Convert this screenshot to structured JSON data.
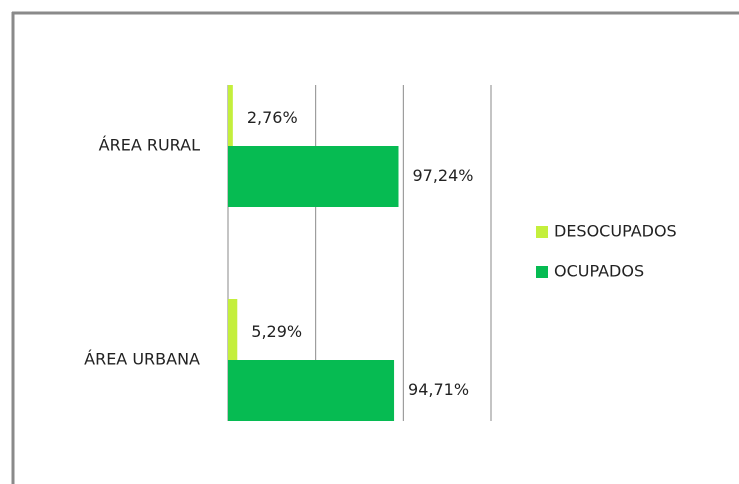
{
  "chart_data": {
    "type": "bar",
    "orientation": "horizontal",
    "categories": [
      "ÁREA RURAL",
      "ÁREA URBANA"
    ],
    "series": [
      {
        "name": "DESOCUPADOS",
        "color": "#c4ef3c",
        "values": [
          2.76,
          5.29
        ],
        "value_labels": [
          "2,76%",
          "5,29%"
        ]
      },
      {
        "name": "OCUPADOS",
        "color": "#06bb52",
        "values": [
          97.24,
          94.71
        ],
        "value_labels": [
          "97,24%",
          "94,71%"
        ]
      }
    ],
    "xlim": [
      0,
      150
    ],
    "xticks": [
      0,
      50,
      100,
      150
    ],
    "grid": true,
    "legend": "right"
  }
}
